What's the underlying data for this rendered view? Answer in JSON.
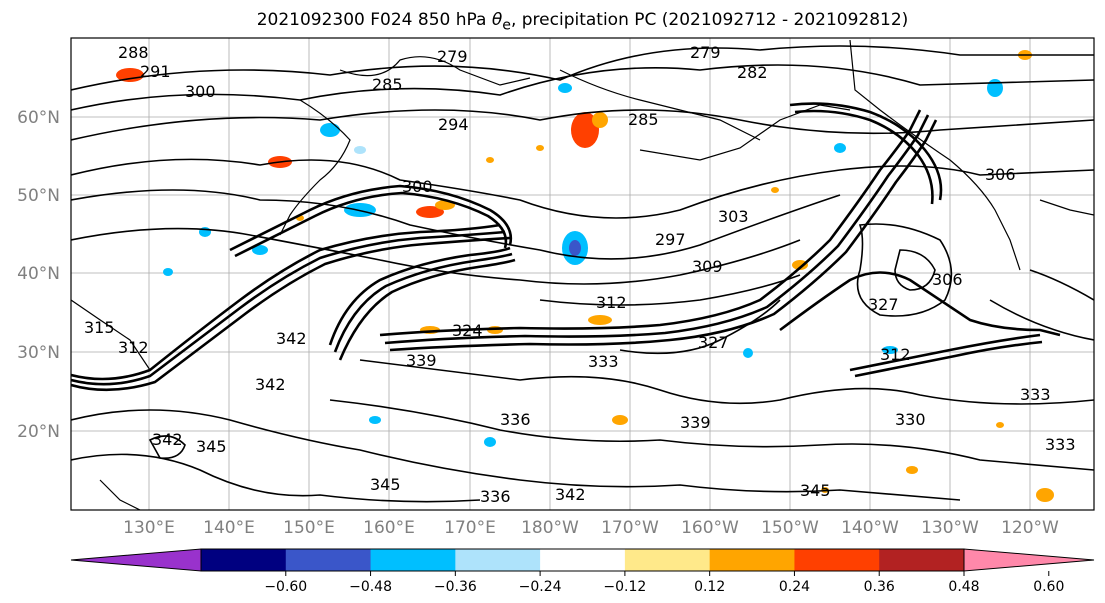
{
  "title_prefix": "2021092300 F024 850 hPa ",
  "title_symbol": "θ",
  "title_sub": "e",
  "title_suffix": ", precipitation PC (2021092712 - 2021092812)",
  "latitude_labels": [
    "60°N",
    "50°N",
    "40°N",
    "30°N",
    "20°N"
  ],
  "longitude_labels": [
    "130°E",
    "140°E",
    "150°E",
    "160°E",
    "170°E",
    "180°W",
    "170°W",
    "160°W",
    "150°W",
    "140°W",
    "130°W",
    "120°W"
  ],
  "contour_labels": [
    "288",
    "291",
    "300",
    "279",
    "282",
    "285",
    "294",
    "285",
    "300",
    "297",
    "303",
    "309",
    "306",
    "312",
    "327",
    "324",
    "327",
    "342",
    "339",
    "333",
    "342",
    "345",
    "336",
    "339",
    "342",
    "345",
    "342",
    "336",
    "330",
    "333",
    "315",
    "312"
  ],
  "colorbar": {
    "colors": [
      "#9932cc",
      "#000080",
      "#3a56c9",
      "#00bfff",
      "#aee3fb",
      "#ffffff",
      "#ffe98a",
      "#ffa500",
      "#ff4000",
      "#b22222",
      "#ff88aa"
    ],
    "tick_labels": [
      "−0.60",
      "−0.48",
      "−0.36",
      "−0.24",
      "−0.12",
      "0.12",
      "0.24",
      "0.36",
      "0.48",
      "0.60"
    ]
  }
}
